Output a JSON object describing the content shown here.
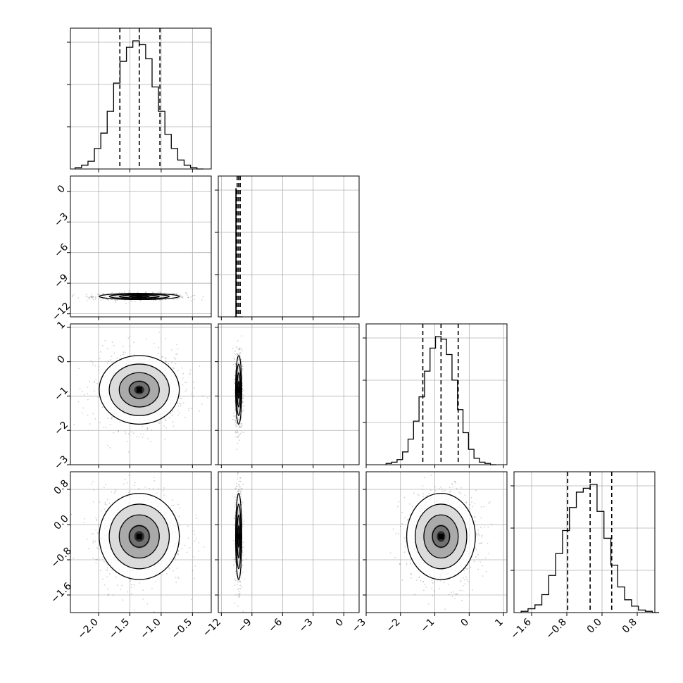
{
  "chart_data": {
    "type": "corner",
    "n_params": 4,
    "colors": {
      "ink": "#000000",
      "grid": "#b0b0b0",
      "frame": "#000000"
    },
    "grid": true,
    "params": [
      {
        "range": [
          -2.45,
          -0.2
        ],
        "ticks": [
          -2.0,
          -1.5,
          -1.0,
          -0.5
        ],
        "tick_labels": [
          "−2.0",
          "−1.5",
          "−1.0",
          "−0.5"
        ],
        "quantiles": [
          -1.66,
          -1.35,
          -1.02
        ],
        "center": -1.35,
        "sigma": 0.32
      },
      {
        "range": [
          -12.3,
          1.5
        ],
        "ticks": [
          -12,
          -9,
          -6,
          -3,
          0
        ],
        "tick_labels": [
          "−12",
          "−9",
          "−6",
          "−3",
          "0"
        ],
        "quantiles": [
          -10.45,
          -10.3,
          -10.15
        ],
        "center": -10.3,
        "sigma": 0.15
      },
      {
        "range": [
          -3.0,
          1.1
        ],
        "ticks": [
          -3,
          -2,
          -1,
          0,
          1
        ],
        "tick_labels": [
          "−3",
          "−2",
          "−1",
          "0",
          "1"
        ],
        "quantiles": [
          -1.35,
          -0.82,
          -0.32
        ],
        "center": -0.82,
        "sigma": 0.5
      },
      {
        "range": [
          -2.0,
          1.2
        ],
        "ticks": [
          -1.6,
          -0.8,
          0.0,
          0.8
        ],
        "tick_labels": [
          "−1.6",
          "−0.8",
          "0.0",
          "0.8"
        ],
        "quantiles": [
          -0.78,
          -0.27,
          0.22
        ],
        "center": -0.27,
        "sigma": 0.49
      }
    ],
    "histograms": [
      {
        "param": 0,
        "bins": 20,
        "values": [
          0.01,
          0.03,
          0.06,
          0.16,
          0.28,
          0.45,
          0.67,
          0.84,
          0.95,
          1.0,
          0.97,
          0.86,
          0.64,
          0.45,
          0.27,
          0.16,
          0.07,
          0.03,
          0.01,
          0.0
        ]
      },
      {
        "param": 1,
        "bins": 20,
        "values": [
          0,
          0,
          0,
          1.0,
          0,
          0,
          0,
          0,
          0,
          0,
          0,
          0,
          0,
          0,
          0,
          0,
          0,
          0,
          0,
          0
        ]
      },
      {
        "param": 2,
        "bins": 20,
        "values": [
          0.01,
          0.02,
          0.04,
          0.1,
          0.2,
          0.34,
          0.53,
          0.73,
          0.91,
          1.0,
          0.98,
          0.86,
          0.66,
          0.43,
          0.25,
          0.12,
          0.05,
          0.02,
          0.01,
          0.0
        ]
      },
      {
        "param": 3,
        "bins": 20,
        "values": [
          0.01,
          0.03,
          0.06,
          0.14,
          0.29,
          0.46,
          0.64,
          0.82,
          0.94,
          0.97,
          1.0,
          0.79,
          0.58,
          0.37,
          0.2,
          0.1,
          0.05,
          0.02,
          0.01,
          0.0
        ]
      }
    ],
    "pairs": [
      {
        "x_param": 0,
        "y_param": 1
      },
      {
        "x_param": 0,
        "y_param": 2
      },
      {
        "x_param": 1,
        "y_param": 2
      },
      {
        "x_param": 0,
        "y_param": 3
      },
      {
        "x_param": 1,
        "y_param": 3
      },
      {
        "x_param": 2,
        "y_param": 3
      }
    ]
  }
}
